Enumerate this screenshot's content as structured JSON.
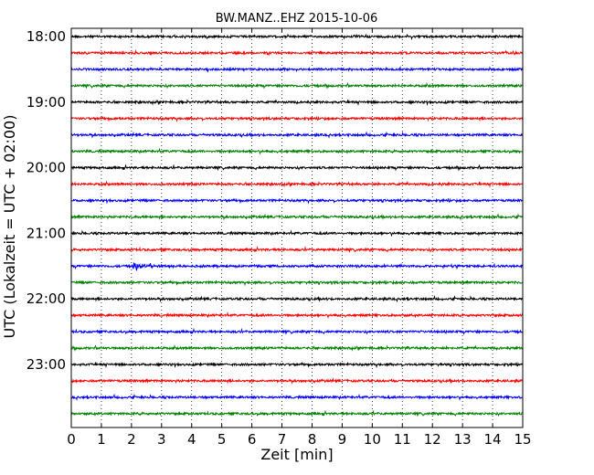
{
  "chart_data": {
    "type": "line",
    "title": "BW.MANZ..EHZ 2015-10-06",
    "xlabel": "Zeit  [min]",
    "ylabel": "UTC (Lokalzeit = UTC + 02:00)",
    "xlim": [
      0,
      15
    ],
    "x_ticks": [
      "0",
      "1",
      "2",
      "3",
      "4",
      "5",
      "6",
      "7",
      "8",
      "9",
      "10",
      "11",
      "12",
      "13",
      "14",
      "15"
    ],
    "y_ticks": [
      "18:00",
      "19:00",
      "20:00",
      "21:00",
      "22:00",
      "23:00"
    ],
    "grid": "vertical dotted",
    "minutes_per_line": 15,
    "trace_colors": [
      "#000000",
      "#ff0000",
      "#0000ff",
      "#008000"
    ],
    "traces": [
      {
        "start": "18:00",
        "color": "#000000"
      },
      {
        "start": "18:15",
        "color": "#ff0000"
      },
      {
        "start": "18:30",
        "color": "#0000ff"
      },
      {
        "start": "18:45",
        "color": "#008000"
      },
      {
        "start": "19:00",
        "color": "#000000"
      },
      {
        "start": "19:15",
        "color": "#ff0000"
      },
      {
        "start": "19:30",
        "color": "#0000ff"
      },
      {
        "start": "19:45",
        "color": "#008000"
      },
      {
        "start": "20:00",
        "color": "#000000"
      },
      {
        "start": "20:15",
        "color": "#ff0000"
      },
      {
        "start": "20:30",
        "color": "#0000ff"
      },
      {
        "start": "20:45",
        "color": "#008000"
      },
      {
        "start": "21:00",
        "color": "#000000"
      },
      {
        "start": "21:15",
        "color": "#ff0000"
      },
      {
        "start": "21:30",
        "color": "#0000ff",
        "event_at_min": 2.1
      },
      {
        "start": "21:45",
        "color": "#008000"
      },
      {
        "start": "22:00",
        "color": "#000000"
      },
      {
        "start": "22:15",
        "color": "#ff0000"
      },
      {
        "start": "22:30",
        "color": "#0000ff"
      },
      {
        "start": "22:45",
        "color": "#008000"
      },
      {
        "start": "23:00",
        "color": "#000000"
      },
      {
        "start": "23:15",
        "color": "#ff0000"
      },
      {
        "start": "23:30",
        "color": "#0000ff"
      },
      {
        "start": "23:45",
        "color": "#008000"
      }
    ]
  }
}
